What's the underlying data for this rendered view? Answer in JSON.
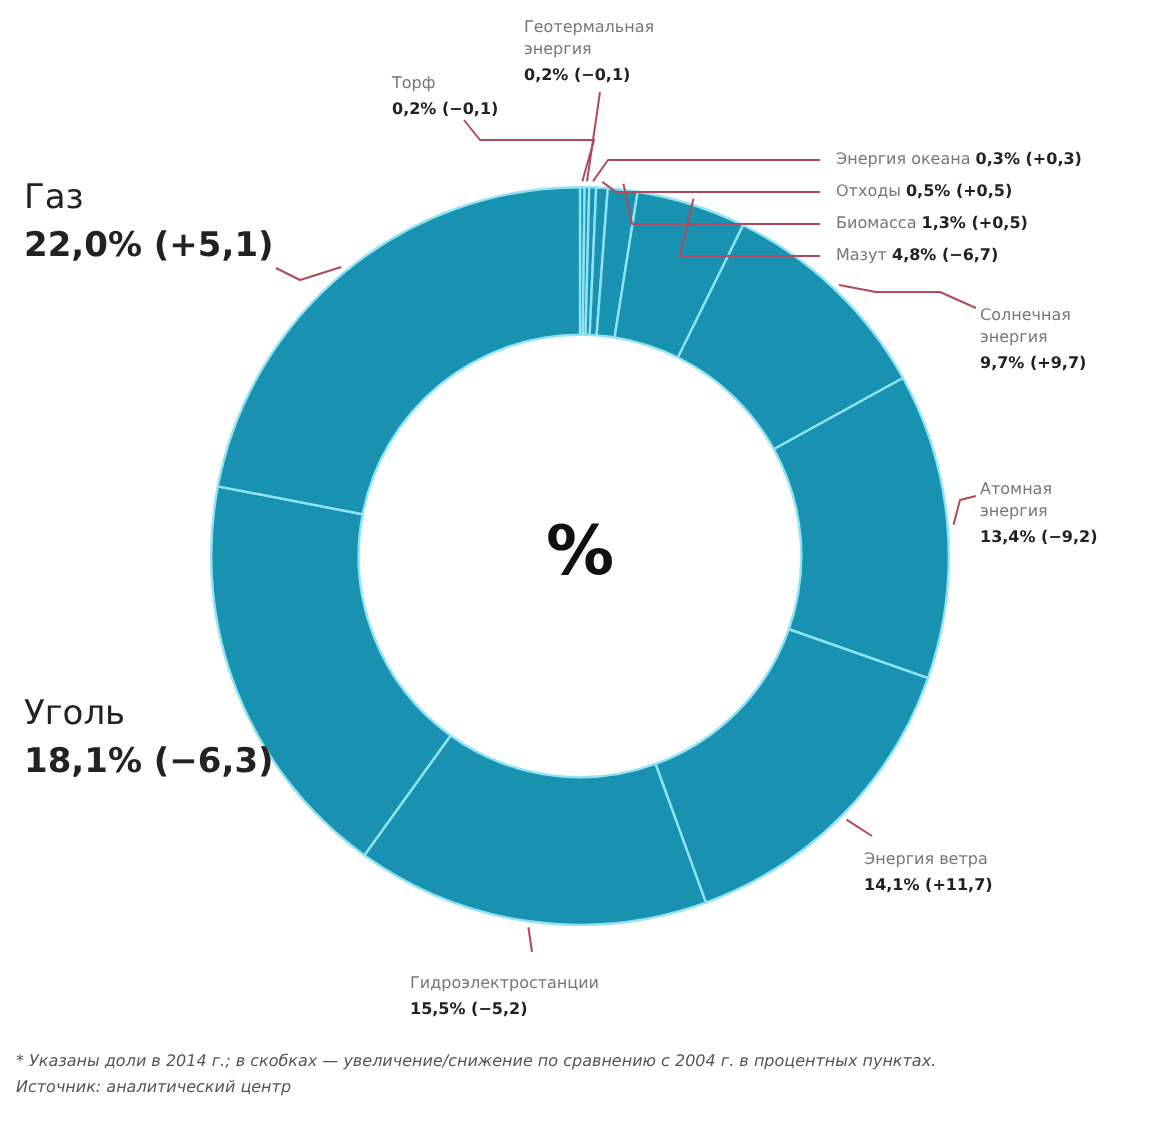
{
  "chart_data": {
    "type": "donut",
    "title": "%",
    "categories": [
      "Торф",
      "Геотермальная энергия",
      "Энергия океана",
      "Отходы",
      "Биомасса",
      "Мазут",
      "Солнечная энергия",
      "Атомная энергия",
      "Энергия ветра",
      "Гидроэлектростанции",
      "Уголь",
      "Газ"
    ],
    "values": [
      0.2,
      0.2,
      0.3,
      0.5,
      1.3,
      4.8,
      9.7,
      13.4,
      14.1,
      15.5,
      18.1,
      22.0
    ],
    "colors": [
      "#1892b0",
      "#1892b0",
      "#1892b0",
      "#1892b0",
      "#1892b0",
      "#1892b0",
      "#1892b0",
      "#1892b0",
      "#1892b0",
      "#1892b0",
      "#1892b0",
      "#1892b0"
    ],
    "value_labels": [
      "0,2% (−0,1)",
      "0,2% (−0,1)",
      "0,3% (+0,3)",
      "0,5% (+0,5)",
      "1,3% (+0,5)",
      "4,8% (−6,7)",
      "9,7% (+9,7)",
      "13,4% (−9,2)",
      "14,1% (+11,7)",
      "15,5% (−5,2)",
      "18,1% (−6,3)",
      "22,0% (+5,1)"
    ],
    "annotations": [
      "* Указаны доли в 2014 г.; в скобках — увеличение/снижение по сравнению с 2004 г. в процентных пунктах.",
      "Источник: аналитический центр"
    ]
  }
}
